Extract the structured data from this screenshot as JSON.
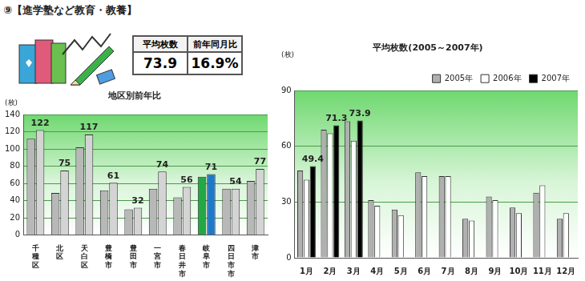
{
  "header": {
    "title": "⑨【進学塾など教育・教養】"
  },
  "summary_table": {
    "headers": [
      "平均枚数",
      "前年同月比"
    ],
    "values": [
      "73.9",
      "16.9%"
    ]
  },
  "chart_data": [
    {
      "type": "bar",
      "title": "地区別前年比",
      "y_label": "(枚)",
      "categories": [
        "千種区",
        "北区",
        "天白区",
        "豊橋市",
        "豊田市",
        "一宮市",
        "春日井市",
        "岐阜市",
        "四日市市",
        "津市"
      ],
      "series": [
        {
          "colors": [
            "#b8b8b8",
            "#b8b8b8",
            "#b8b8b8",
            "#b8b8b8",
            "#b8b8b8",
            "#b8b8b8",
            "#b8b8b8",
            "#22a844",
            "#b8b8b8",
            "#b8b8b8"
          ],
          "values": [
            112,
            49,
            102,
            52,
            30,
            54,
            44,
            68,
            54,
            63
          ]
        },
        {
          "colors": [
            "#d4d4d4",
            "#d4d4d4",
            "#d4d4d4",
            "#d4d4d4",
            "#d4d4d4",
            "#d4d4d4",
            "#d4d4d4",
            "#1f78c8",
            "#d4d4d4",
            "#d4d4d4"
          ],
          "values": [
            122,
            75,
            117,
            61,
            32,
            74,
            56,
            71,
            54,
            77
          ],
          "data_labels": true
        }
      ],
      "ylim": [
        0,
        140
      ],
      "yticks": [
        0,
        20,
        40,
        60,
        80,
        100,
        120,
        140
      ],
      "grid": true
    },
    {
      "type": "bar",
      "title": "平均枚数(2005～2007年)",
      "y_label": "(枚)",
      "categories": [
        "1月",
        "2月",
        "3月",
        "4月",
        "5月",
        "6月",
        "7月",
        "8月",
        "9月",
        "10月",
        "11月",
        "12月"
      ],
      "series": [
        {
          "name": "2005年",
          "color": "#b0b0b0",
          "values": [
            47,
            69,
            73.5,
            31,
            26,
            46,
            44,
            21,
            33,
            27,
            35,
            21
          ]
        },
        {
          "name": "2006年",
          "color": "#ffffff",
          "values": [
            42,
            67,
            63,
            28,
            23,
            44,
            44,
            20,
            31,
            24,
            39,
            24
          ]
        },
        {
          "name": "2007年",
          "color": "#000000",
          "values": [
            49.4,
            71.3,
            73.9,
            null,
            null,
            null,
            null,
            null,
            null,
            null,
            null,
            null
          ],
          "data_labels": true
        }
      ],
      "ylim": [
        0,
        90
      ],
      "yticks": [
        0,
        30,
        60,
        90
      ],
      "grid": true,
      "legend": "top-right"
    }
  ]
}
